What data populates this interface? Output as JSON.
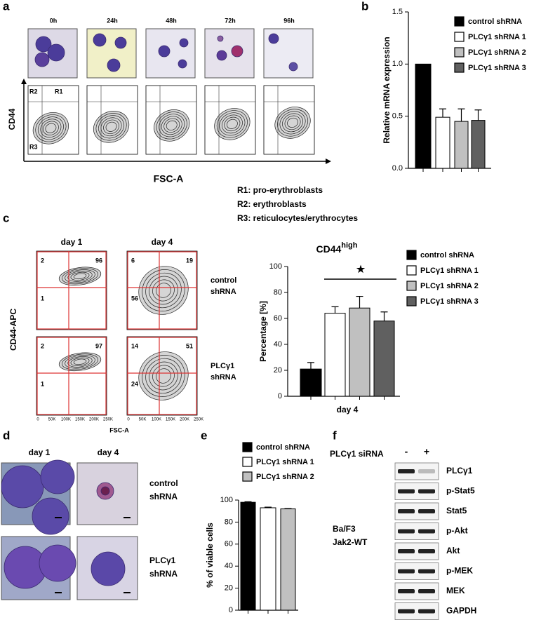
{
  "figure": {
    "panel_a": {
      "label": "a",
      "times": [
        "0h",
        "24h",
        "48h",
        "72h",
        "96h"
      ],
      "gates": [
        "R2",
        "R1",
        "R3"
      ],
      "y_axis": "CD44",
      "x_axis": "FSC-A",
      "gate_key": [
        "R1: pro-erythroblasts",
        "R2: erythroblasts",
        "R3: reticulocytes/erythrocytes"
      ]
    },
    "panel_b": {
      "label": "b"
    },
    "panel_c": {
      "label": "c",
      "columns": [
        "day 1",
        "day 4"
      ],
      "rows": [
        [
          "control",
          "shRNA"
        ],
        [
          "PLCγ1",
          "shRNA"
        ]
      ],
      "quadrants": [
        [
          {
            "upper_left": 2,
            "upper_right": 96,
            "lower_left": 1
          },
          {
            "upper_left": 6,
            "upper_right": 19,
            "lower_left": 56
          }
        ],
        [
          {
            "upper_left": 2,
            "upper_right": 97,
            "lower_left": 1
          },
          {
            "upper_left": 14,
            "upper_right": 51,
            "lower_left": 24
          }
        ]
      ],
      "y_axis": "CD44-APC",
      "x_axis": "FSC-A",
      "x_ticks": [
        "0",
        "50K",
        "100K",
        "150K",
        "200K",
        "250K"
      ]
    },
    "panel_d": {
      "label": "d",
      "columns": [
        "day 1",
        "day 4"
      ],
      "rows": [
        [
          "control",
          "shRNA"
        ],
        [
          "PLCγ1",
          "shRNA"
        ]
      ]
    },
    "panel_e": {
      "label": "e"
    },
    "panel_f": {
      "label": "f",
      "treatment": "PLCγ1 siRNA",
      "lanes": [
        "-",
        "+"
      ],
      "proteins": [
        "PLCγ1",
        "p-Stat5",
        "Stat5",
        "p-Akt",
        "Akt",
        "p-MEK",
        "MEK",
        "GAPDH"
      ],
      "cell_line": [
        "Ba/F3",
        "Jak2-WT"
      ]
    }
  },
  "chart_data": [
    {
      "type": "bar",
      "y_label": "Relative mRNA expression",
      "categories": [
        null
      ],
      "series": [
        {
          "name": "control shRNA",
          "color": "#000000",
          "values": [
            1.0
          ]
        },
        {
          "name": "PLCγ1 shRNA 1",
          "color": "#ffffff",
          "values": [
            0.49
          ],
          "errors": [
            0.08
          ]
        },
        {
          "name": "PLCγ1 shRNA 2",
          "color": "#c0c0c0",
          "values": [
            0.45
          ],
          "errors": [
            0.12
          ]
        },
        {
          "name": "PLCγ1 shRNA 3",
          "color": "#606060",
          "values": [
            0.46
          ],
          "errors": [
            0.1
          ]
        }
      ],
      "ylim": [
        0,
        1.5
      ],
      "yticks": [
        {
          "value": 0,
          "label": "0.0"
        },
        0.5,
        {
          "value": 1,
          "label": "1.0"
        },
        1.5
      ]
    },
    {
      "type": "bar",
      "title": "CD44",
      "title_superscript": "high",
      "y_label": "Percentage [%]",
      "categories": [
        "day 4"
      ],
      "series": [
        {
          "name": "control shRNA",
          "color": "#000000",
          "values": [
            21
          ],
          "errors": [
            5
          ]
        },
        {
          "name": "PLCγ1 shRNA 1",
          "color": "#ffffff",
          "values": [
            64
          ],
          "errors": [
            5
          ]
        },
        {
          "name": "PLCγ1 shRNA 2",
          "color": "#c0c0c0",
          "values": [
            68
          ],
          "errors": [
            9
          ]
        },
        {
          "name": "PLCγ1 shRNA 3",
          "color": "#606060",
          "values": [
            58
          ],
          "errors": [
            7
          ]
        }
      ],
      "ylim": [
        0,
        100
      ],
      "yticks": [
        0,
        20,
        40,
        60,
        80,
        100
      ],
      "annotation": "★"
    },
    {
      "type": "bar",
      "y_label": "% of viable cells",
      "categories": [
        null
      ],
      "series": [
        {
          "name": "control shRNA",
          "color": "#000000",
          "values": [
            98
          ],
          "errors": [
            0.5
          ]
        },
        {
          "name": "PLCγ1 shRNA 1",
          "color": "#ffffff",
          "values": [
            93
          ],
          "errors": [
            0.6
          ]
        },
        {
          "name": "PLCγ1 shRNA 2",
          "color": "#c0c0c0",
          "values": [
            92
          ],
          "errors": [
            0.3
          ]
        }
      ],
      "ylim": [
        0,
        100
      ],
      "yticks": [
        0,
        20,
        40,
        60,
        80,
        100
      ]
    }
  ]
}
